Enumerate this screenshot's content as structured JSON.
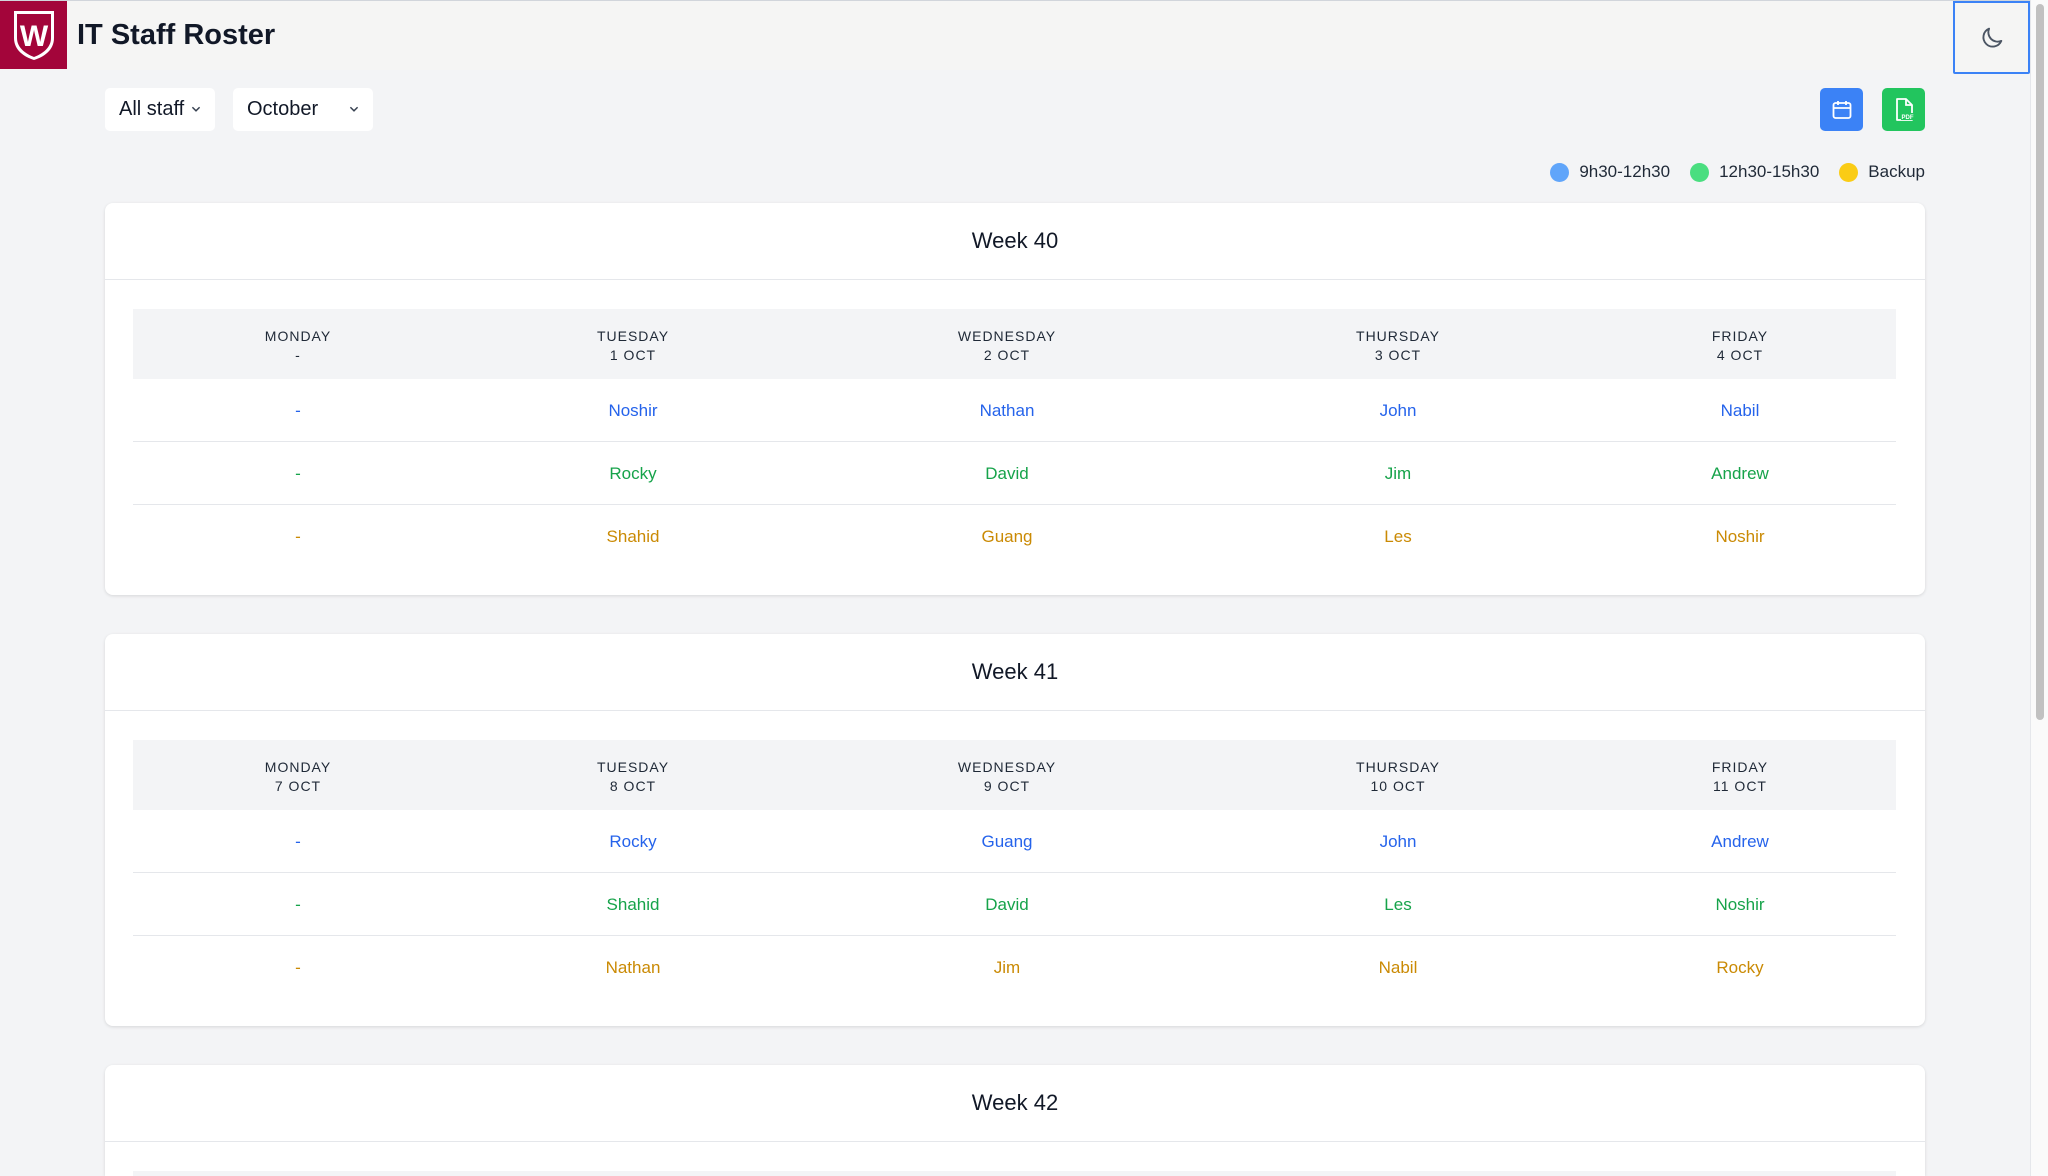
{
  "header": {
    "logo_letter": "W",
    "title": "IT Staff Roster"
  },
  "filters": {
    "staff": "All staff",
    "month": "October"
  },
  "legend": [
    {
      "label": "9h30-12h30",
      "color": "#60a5fa"
    },
    {
      "label": "12h30-15h30",
      "color": "#4ade80"
    },
    {
      "label": "Backup",
      "color": "#facc15"
    }
  ],
  "weeks": [
    {
      "title": "Week 40",
      "days": [
        {
          "name": "MONDAY",
          "date": "-"
        },
        {
          "name": "TUESDAY",
          "date": "1 OCT"
        },
        {
          "name": "WEDNESDAY",
          "date": "2 OCT"
        },
        {
          "name": "THURSDAY",
          "date": "3 OCT"
        },
        {
          "name": "FRIDAY",
          "date": "4 OCT"
        }
      ],
      "rows": [
        [
          "-",
          "Noshir",
          "Nathan",
          "John",
          "Nabil"
        ],
        [
          "-",
          "Rocky",
          "David",
          "Jim",
          "Andrew"
        ],
        [
          "-",
          "Shahid",
          "Guang",
          "Les",
          "Noshir"
        ]
      ]
    },
    {
      "title": "Week 41",
      "days": [
        {
          "name": "MONDAY",
          "date": "7 OCT"
        },
        {
          "name": "TUESDAY",
          "date": "8 OCT"
        },
        {
          "name": "WEDNESDAY",
          "date": "9 OCT"
        },
        {
          "name": "THURSDAY",
          "date": "10 OCT"
        },
        {
          "name": "FRIDAY",
          "date": "11 OCT"
        }
      ],
      "rows": [
        [
          "-",
          "Rocky",
          "Guang",
          "John",
          "Andrew"
        ],
        [
          "-",
          "Shahid",
          "David",
          "Les",
          "Noshir"
        ],
        [
          "-",
          "Nathan",
          "Jim",
          "Nabil",
          "Rocky"
        ]
      ]
    },
    {
      "title": "Week 42"
    }
  ]
}
